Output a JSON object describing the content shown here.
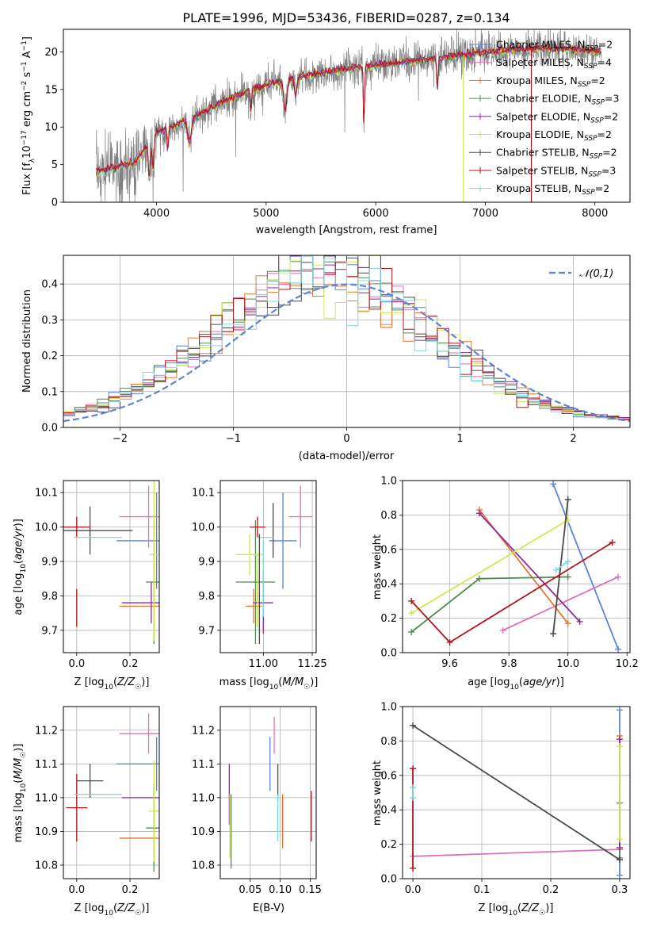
{
  "figure": {
    "title": "PLATE=1996, MJD=53436, FIBERID=0287, z=0.134"
  },
  "colors": {
    "Chabrier MILES": "#5b84d8",
    "Salpeter MILES": "#e46fb8",
    "Kroupa MILES": "#e8762a",
    "Chabrier ELODIE": "#4f8a4f",
    "Salpeter ELODIE": "#8b2aa0",
    "Kroupa ELODIE": "#cfe84f",
    "Chabrier STELIB": "#4a4a4a",
    "Salpeter STELIB": "#b5121b",
    "Kroupa STELIB": "#7fd8dd",
    "gaussian": "#5b84d8",
    "data": "#808080"
  },
  "chart_data": [
    {
      "id": "spectrum",
      "type": "line",
      "xlabel": "wavelength [Angstrom, rest frame]",
      "ylabel": "Flux [f_λ10^-17 erg cm^-2 s^-1 A^-1]",
      "xlim": [
        3150,
        8320
      ],
      "ylim": [
        0,
        23
      ],
      "xticks": [
        4000,
        5000,
        6000,
        7000,
        8000
      ],
      "yticks": [
        0,
        5,
        10,
        15,
        20
      ],
      "grid": false,
      "legend_position": "upper right",
      "legend": [
        {
          "model": "Chabrier MILES",
          "label": "Chabrier MILES, N",
          "sub": "SSP",
          "n": "=2"
        },
        {
          "model": "Salpeter MILES",
          "label": "Salpeter MILES, N",
          "sub": "SSP",
          "n": "=4"
        },
        {
          "model": "Kroupa MILES",
          "label": "Kroupa MILES, N",
          "sub": "SSP",
          "n": "=2"
        },
        {
          "model": "Chabrier ELODIE",
          "label": "Chabrier ELODIE, N",
          "sub": "SSP",
          "n": "=3"
        },
        {
          "model": "Salpeter ELODIE",
          "label": "Salpeter ELODIE, N",
          "sub": "SSP",
          "n": "=2"
        },
        {
          "model": "Kroupa ELODIE",
          "label": "Kroupa ELODIE, N",
          "sub": "SSP",
          "n": "=2"
        },
        {
          "model": "Chabrier STELIB",
          "label": "Chabrier STELIB, N",
          "sub": "SSP",
          "n": "=2"
        },
        {
          "model": "Salpeter STELIB",
          "label": "Salpeter STELIB, N",
          "sub": "SSP",
          "n": "=3"
        },
        {
          "model": "Kroupa STELIB",
          "label": "Kroupa STELIB, N",
          "sub": "SSP",
          "n": "=2"
        }
      ],
      "continuum": {
        "x": [
          3450,
          3600,
          3800,
          3900,
          4000,
          4200,
          4500,
          4800,
          5000,
          5200,
          5500,
          5800,
          6000,
          6300,
          6500,
          6800,
          7000,
          7200,
          7500,
          7800,
          8050
        ],
        "y": [
          4.0,
          4.6,
          5.2,
          7.2,
          9.3,
          10.4,
          12.6,
          14.6,
          15.5,
          16.3,
          17.2,
          17.8,
          18.2,
          18.7,
          19.0,
          19.6,
          19.9,
          20.2,
          20.5,
          20.3,
          20.0
        ]
      },
      "data_range": [
        3450,
        8060
      ],
      "drops": [
        {
          "model": "Kroupa ELODIE",
          "x": 6800
        },
        {
          "model": "Salpeter STELIB",
          "x": 7420
        }
      ]
    },
    {
      "id": "residual-hist",
      "type": "histogram",
      "xlabel": "(data-model)/error",
      "ylabel": "Normed distribution",
      "xlim": [
        -2.5,
        2.5
      ],
      "ylim": [
        0,
        0.48
      ],
      "xticks": [
        -2,
        -1,
        0,
        1,
        2
      ],
      "yticks": [
        0.0,
        0.1,
        0.2,
        0.3,
        0.4
      ],
      "grid": true,
      "legend_position": "upper right",
      "legend_label": "𝒩(0,1)",
      "bin_width": 0.1
    },
    {
      "id": "age-vs-Z",
      "type": "errorbar",
      "xlabel": "Z [log10(Z/Z☉)]",
      "ylabel": "age [log10(age/yr)]",
      "xlim": [
        -0.05,
        0.31
      ],
      "ylim": [
        9.635,
        10.135
      ],
      "xticks": [
        0.0,
        0.2
      ],
      "yticks": [
        9.7,
        9.8,
        9.9,
        10.0,
        10.1
      ],
      "grid": true,
      "points": [
        {
          "model": "Chabrier MILES",
          "x": 0.3,
          "y": 9.96,
          "xerr": 0.15,
          "yerr": 0.14
        },
        {
          "model": "Salpeter MILES",
          "x": 0.27,
          "y": 10.03,
          "xerr": 0.11,
          "yerr": 0.09
        },
        {
          "model": "Kroupa MILES",
          "x": 0.28,
          "y": 9.77,
          "xerr": 0.12,
          "yerr": 0.0
        },
        {
          "model": "Chabrier ELODIE",
          "x": 0.29,
          "y": 9.84,
          "xerr": 0.03,
          "yerr": 0.18
        },
        {
          "model": "Salpeter ELODIE",
          "x": 0.28,
          "y": 9.78,
          "xerr": 0.11,
          "yerr": 0.06
        },
        {
          "model": "Kroupa ELODIE",
          "x": 0.29,
          "y": 9.92,
          "xerr": 0.02,
          "yerr": 0.25
        },
        {
          "model": "Chabrier STELIB",
          "x": 0.05,
          "y": 9.99,
          "xerr": 0.16,
          "yerr": 0.07
        },
        {
          "model": "Salpeter STELIB",
          "x": 0.0,
          "y": 10.0,
          "xerr": 0.05,
          "yerr": 0.03
        },
        {
          "model": "Kroupa STELIB",
          "x": 0.08,
          "y": 9.97,
          "xerr": 0.09,
          "yerr": 0.0
        }
      ],
      "extra_vlines": [
        {
          "model": "Salpeter STELIB",
          "x": 0.0,
          "y0": 9.71,
          "y1": 9.82
        }
      ]
    },
    {
      "id": "age-vs-mass",
      "type": "errorbar",
      "xlabel": "mass [log10(M/M☉)]",
      "ylabel": "",
      "xlim": [
        10.78,
        11.27
      ],
      "ylim": [
        9.635,
        10.135
      ],
      "xticks": [
        11.0,
        11.25
      ],
      "yticks": [
        9.7,
        9.8,
        9.9,
        10.0,
        10.1
      ],
      "grid": true,
      "points": [
        {
          "model": "Chabrier MILES",
          "x": 11.1,
          "y": 9.96,
          "xerr": 0.07,
          "yerr": 0.14
        },
        {
          "model": "Salpeter MILES",
          "x": 11.19,
          "y": 10.03,
          "xerr": 0.06,
          "yerr": 0.09
        },
        {
          "model": "Kroupa MILES",
          "x": 10.95,
          "y": 9.77,
          "xerr": 0.04,
          "yerr": 0.05
        },
        {
          "model": "Chabrier ELODIE",
          "x": 10.96,
          "y": 9.84,
          "xerr": 0.1,
          "yerr": 0.18
        },
        {
          "model": "Salpeter ELODIE",
          "x": 11.0,
          "y": 9.78,
          "xerr": 0.05,
          "yerr": 0.09
        },
        {
          "model": "Kroupa ELODIE",
          "x": 10.93,
          "y": 9.92,
          "xerr": 0.07,
          "yerr": 0.06
        },
        {
          "model": "Chabrier STELIB",
          "x": 11.05,
          "y": 9.99,
          "xerr": 0.0,
          "yerr": 0.08
        },
        {
          "model": "Salpeter STELIB",
          "x": 10.97,
          "y": 10.0,
          "xerr": 0.04,
          "yerr": 0.03
        },
        {
          "model": "Kroupa STELIB",
          "x": 11.01,
          "y": 9.97,
          "xerr": 0.04,
          "yerr": 0.0
        }
      ],
      "extra_vlines": [
        {
          "model": "Kroupa MILES",
          "x": 10.97,
          "y0": 9.71,
          "y1": 9.87
        },
        {
          "model": "Kroupa ELODIE",
          "x": 10.97,
          "y0": 9.71,
          "y1": 9.92
        },
        {
          "model": "Kroupa STELIB",
          "x": 11.0,
          "y0": 9.74,
          "y1": 9.96
        },
        {
          "model": "Chabrier STELIB",
          "x": 10.98,
          "y0": 9.66,
          "y1": 9.98
        }
      ]
    },
    {
      "id": "massweight-vs-age",
      "type": "line",
      "xlabel": "age [log10(age/yr)]",
      "ylabel": "mass weight",
      "xlim": [
        9.44,
        10.21
      ],
      "ylim": [
        0.0,
        1.0
      ],
      "xticks": [
        9.6,
        9.8,
        10.0,
        10.2
      ],
      "yticks": [
        0.0,
        0.2,
        0.4,
        0.6,
        0.8,
        1.0
      ],
      "grid": true,
      "series": [
        {
          "model": "Chabrier MILES",
          "x": [
            9.95,
            10.17
          ],
          "y": [
            0.98,
            0.02
          ]
        },
        {
          "model": "Salpeter MILES",
          "x": [
            9.78,
            10.17
          ],
          "y": [
            0.13,
            0.44
          ]
        },
        {
          "model": "Kroupa MILES",
          "x": [
            9.7,
            10.0
          ],
          "y": [
            0.83,
            0.17
          ]
        },
        {
          "model": "Chabrier ELODIE",
          "x": [
            9.47,
            9.7,
            10.0
          ],
          "y": [
            0.12,
            0.43,
            0.44
          ]
        },
        {
          "model": "Salpeter ELODIE",
          "x": [
            9.7,
            10.04
          ],
          "y": [
            0.81,
            0.18
          ]
        },
        {
          "model": "Kroupa ELODIE",
          "x": [
            9.47,
            10.0
          ],
          "y": [
            0.23,
            0.77
          ]
        },
        {
          "model": "Chabrier STELIB",
          "x": [
            9.95,
            10.0
          ],
          "y": [
            0.11,
            0.89
          ]
        },
        {
          "model": "Salpeter STELIB",
          "x": [
            9.47,
            9.6,
            10.15
          ],
          "y": [
            0.3,
            0.06,
            0.64
          ]
        },
        {
          "model": "Kroupa STELIB",
          "x": [
            9.96,
            10.0
          ],
          "y": [
            0.48,
            0.53
          ]
        }
      ]
    },
    {
      "id": "mass-vs-Z",
      "type": "errorbar",
      "xlabel": "Z [log10(Z/Z☉)]",
      "ylabel": "mass [log10(M/M☉)]",
      "xlim": [
        -0.05,
        0.31
      ],
      "ylim": [
        10.76,
        11.27
      ],
      "xticks": [
        0.0,
        0.2
      ],
      "yticks": [
        10.8,
        10.9,
        11.0,
        11.1,
        11.2
      ],
      "grid": true,
      "points": [
        {
          "model": "Chabrier MILES",
          "x": 0.3,
          "y": 11.1,
          "xerr": 0.15,
          "yerr": 0.08
        },
        {
          "model": "Salpeter MILES",
          "x": 0.27,
          "y": 11.19,
          "xerr": 0.11,
          "yerr": 0.06
        },
        {
          "model": "Kroupa MILES",
          "x": 0.28,
          "y": 10.88,
          "xerr": 0.12,
          "yerr": 0.0
        },
        {
          "model": "Chabrier ELODIE",
          "x": 0.29,
          "y": 10.91,
          "xerr": 0.03,
          "yerr": 0.13
        },
        {
          "model": "Salpeter ELODIE",
          "x": 0.28,
          "y": 11.0,
          "xerr": 0.11,
          "yerr": 0.0
        },
        {
          "model": "Kroupa ELODIE",
          "x": 0.29,
          "y": 10.96,
          "xerr": 0.02,
          "yerr": 0.15
        },
        {
          "model": "Chabrier STELIB",
          "x": 0.05,
          "y": 11.05,
          "xerr": 0.05,
          "yerr": 0.05
        },
        {
          "model": "Salpeter STELIB",
          "x": 0.0,
          "y": 10.97,
          "xerr": 0.04,
          "yerr": 0.1
        },
        {
          "model": "Kroupa STELIB",
          "x": 0.08,
          "y": 11.01,
          "xerr": 0.09,
          "yerr": 0.0
        }
      ]
    },
    {
      "id": "mass-vs-EBV",
      "type": "errorbar",
      "xlabel": "E(B-V)",
      "ylabel": "",
      "xlim": [
        0.0,
        0.16
      ],
      "ylim": [
        10.76,
        11.27
      ],
      "xticks": [
        0.05,
        0.1,
        0.15
      ],
      "yticks": [
        10.8,
        10.9,
        11.0,
        11.1,
        11.2
      ],
      "grid": true,
      "vlines": [
        {
          "model": "Salpeter ELODIE",
          "x": 0.015,
          "y0": 10.92,
          "y1": 11.1
        },
        {
          "model": "Kroupa ELODIE",
          "x": 0.016,
          "y0": 10.82,
          "y1": 11.01
        },
        {
          "model": "Chabrier ELODIE",
          "x": 0.018,
          "y0": 10.79,
          "y1": 11.01
        },
        {
          "model": "Chabrier MILES",
          "x": 0.083,
          "y0": 11.02,
          "y1": 11.18
        },
        {
          "model": "Salpeter MILES",
          "x": 0.09,
          "y0": 11.13,
          "y1": 11.24
        },
        {
          "model": "Chabrier STELIB",
          "x": 0.096,
          "y0": 10.99,
          "y1": 11.1
        },
        {
          "model": "Kroupa STELIB",
          "x": 0.096,
          "y0": 10.87,
          "y1": 11.01
        },
        {
          "model": "Kroupa MILES",
          "x": 0.104,
          "y0": 10.85,
          "y1": 11.01
        },
        {
          "model": "Salpeter STELIB",
          "x": 0.152,
          "y0": 10.87,
          "y1": 11.02
        }
      ]
    },
    {
      "id": "massweight-vs-Z",
      "type": "line",
      "xlabel": "Z [log10(Z/Z☉)]",
      "ylabel": "mass weight",
      "xlim": [
        -0.015,
        0.315
      ],
      "ylim": [
        0.0,
        1.0
      ],
      "xticks": [
        0.0,
        0.1,
        0.2,
        0.3
      ],
      "yticks": [
        0.0,
        0.2,
        0.4,
        0.6,
        0.8,
        1.0
      ],
      "grid": true,
      "series": [
        {
          "model": "Chabrier MILES",
          "x": [
            0.3,
            0.3
          ],
          "y": [
            0.02,
            0.98
          ]
        },
        {
          "model": "Salpeter MILES",
          "x": [
            0.0,
            0.3
          ],
          "y": [
            0.13,
            0.17
          ]
        },
        {
          "model": "Kroupa MILES",
          "x": [
            0.3,
            0.3
          ],
          "y": [
            0.17,
            0.83
          ]
        },
        {
          "model": "Chabrier ELODIE",
          "x": [
            0.3,
            0.3
          ],
          "y": [
            0.12,
            0.44
          ]
        },
        {
          "model": "Salpeter ELODIE",
          "x": [
            0.3,
            0.3
          ],
          "y": [
            0.18,
            0.81
          ]
        },
        {
          "model": "Kroupa ELODIE",
          "x": [
            0.3,
            0.3
          ],
          "y": [
            0.23,
            0.77
          ]
        },
        {
          "model": "Chabrier STELIB",
          "x": [
            0.0,
            0.3
          ],
          "y": [
            0.89,
            0.11
          ]
        },
        {
          "model": "Salpeter STELIB",
          "x": [
            0.0,
            0.0
          ],
          "y": [
            0.06,
            0.64
          ]
        },
        {
          "model": "Kroupa STELIB",
          "x": [
            0.0,
            0.0
          ],
          "y": [
            0.47,
            0.53
          ]
        }
      ]
    }
  ]
}
